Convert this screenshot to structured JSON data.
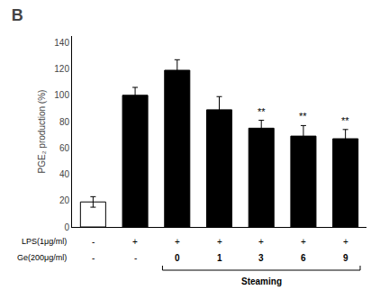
{
  "chart_data": {
    "type": "bar",
    "title": "B",
    "ylabel": "PGE₂ production (%)",
    "categories": [
      null,
      null,
      null,
      null,
      null,
      null,
      null
    ],
    "values": [
      19,
      100,
      119,
      89,
      75,
      69,
      67
    ],
    "errors": [
      4,
      6,
      8,
      10,
      6,
      8,
      7
    ],
    "colors": [
      "white",
      "black",
      "black",
      "black",
      "black",
      "black",
      "black"
    ],
    "ylim": [
      0,
      145
    ],
    "yticks": [
      0,
      20,
      40,
      60,
      80,
      100,
      120,
      140
    ],
    "grid": false,
    "annotations": {
      "significance": [
        {
          "category": 4,
          "text": "**"
        },
        {
          "category": 5,
          "text": "**"
        },
        {
          "category": 6,
          "text": "**"
        }
      ],
      "rows": [
        {
          "label": "LPS(1μg/ml)",
          "values": [
            "-",
            "+",
            "+",
            "+",
            "+",
            "+",
            "+"
          ]
        },
        {
          "label": "Ge(200μg/ml)",
          "values": [
            "-",
            "-",
            "0",
            "1",
            "3",
            "6",
            "9"
          ]
        }
      ],
      "bracket": {
        "text": "Steaming",
        "from": 2,
        "to": 6
      }
    }
  }
}
